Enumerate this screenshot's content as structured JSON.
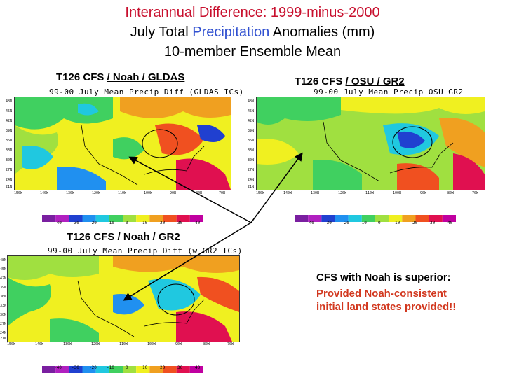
{
  "title": {
    "line1": "Interannual Difference: 1999-minus-2000",
    "line2_pre": "July Total ",
    "line2_accent": "Precipitation",
    "line2_post": " Anomalies (mm)",
    "line3": "10-member Ensemble Mean"
  },
  "panels": [
    {
      "label_pre": "T126 CFS ",
      "label_link": "/ Noah / GLDAS",
      "map_title": "99-00 July Mean Precip Diff (GLDAS ICs)"
    },
    {
      "label_pre": "T126 CFS ",
      "label_link": "/ OSU / GR2",
      "map_title": "99-00 July Mean Precip OSU GR2"
    },
    {
      "label_pre": "T126 CFS ",
      "label_link": "/ Noah / GR2",
      "map_title": "99-00 July Mean Precip Diff (w GR2 ICs)"
    }
  ],
  "lat_ticks": [
    "48N",
    "45N",
    "42N",
    "39N",
    "36N",
    "33N",
    "30N",
    "27N",
    "24N",
    "21N"
  ],
  "lon_ticks": [
    "150W",
    "140W",
    "130W",
    "120W",
    "110W",
    "100W",
    "90W",
    "80W",
    "70W"
  ],
  "colorbar_ticks": [
    "-40",
    "-30",
    "-20",
    "-10",
    "0",
    "10",
    "20",
    "30",
    "40"
  ],
  "colorbar_colors": [
    "#7a1fa0",
    "#b020c0",
    "#2040d0",
    "#2090f0",
    "#20c8e0",
    "#40d060",
    "#a0e040",
    "#f0f020",
    "#f0a020",
    "#f05020",
    "#e01050",
    "#c000a0"
  ],
  "note": {
    "heading": "CFS with Noah is superior:",
    "body_line1": "Provided Noah-consistent",
    "body_line2": "initial land states provided!!"
  }
}
